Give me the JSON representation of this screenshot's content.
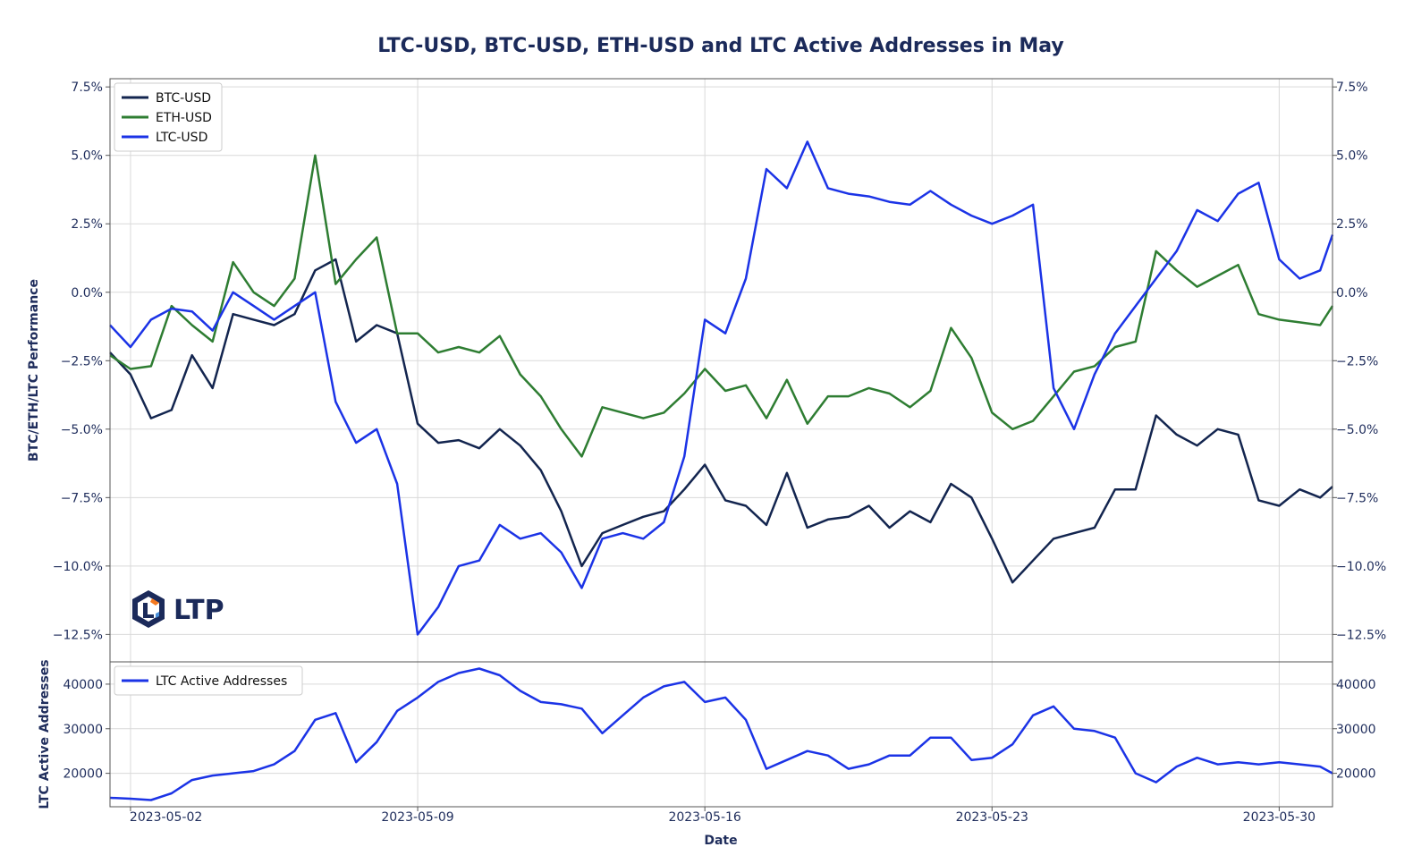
{
  "chart_data": [
    {
      "type": "line",
      "title": "LTC-USD, BTC-USD, ETH-USD and LTC Active Addresses in May",
      "ylabel": "BTC/ETH/LTC Performance",
      "xlabel": "",
      "ylim": [
        -13.5,
        7.8
      ],
      "yticks": [
        "7.5%",
        "5.0%",
        "2.5%",
        "0.0%",
        "−2.5%",
        "−5.0%",
        "−7.5%",
        "−10.0%",
        "−12.5%"
      ],
      "ytick_values": [
        7.5,
        5.0,
        2.5,
        0.0,
        -2.5,
        -5.0,
        -7.5,
        -10.0,
        -12.5
      ],
      "legend_position": "top-left",
      "grid": true,
      "x": [
        1.5,
        2,
        2.5,
        3,
        3.5,
        4,
        4.5,
        5,
        5.5,
        6,
        6.5,
        7,
        7.5,
        8,
        8.5,
        9,
        9.5,
        10,
        10.5,
        11,
        11.5,
        12,
        12.5,
        13,
        13.5,
        14,
        14.5,
        15,
        15.5,
        16,
        16.5,
        17,
        17.5,
        18,
        18.5,
        19,
        19.5,
        20,
        20.5,
        21,
        21.5,
        22,
        22.5,
        23,
        23.5,
        24,
        24.5,
        25,
        25.5,
        26,
        26.5,
        27,
        27.5,
        28,
        28.5,
        29,
        29.5,
        30,
        30.5,
        31,
        31.3
      ],
      "series": [
        {
          "name": "BTC-USD",
          "color": "#13254f",
          "values": [
            -2.2,
            -3.0,
            -4.6,
            -4.3,
            -2.3,
            -3.5,
            -0.8,
            -1.0,
            -1.2,
            -0.8,
            0.8,
            1.2,
            -1.8,
            -1.2,
            -1.5,
            -4.8,
            -5.5,
            -5.4,
            -5.7,
            -5.0,
            -5.6,
            -6.5,
            -8.0,
            -10.0,
            -8.8,
            -8.5,
            -8.2,
            -8.0,
            -7.2,
            -6.3,
            -7.6,
            -7.8,
            -8.5,
            -6.6,
            -8.6,
            -8.3,
            -8.2,
            -7.8,
            -8.6,
            -8.0,
            -8.4,
            -7.0,
            -7.5,
            -9.0,
            -10.6,
            -9.8,
            -9.0,
            -8.8,
            -8.6,
            -7.2,
            -7.2,
            -4.5,
            -5.2,
            -5.6,
            -5.0,
            -5.2,
            -7.6,
            -7.8,
            -7.2,
            -7.5,
            -7.1
          ]
        },
        {
          "name": "ETH-USD",
          "color": "#2e7d32",
          "values": [
            -2.3,
            -2.8,
            -2.7,
            -0.5,
            -1.2,
            -1.8,
            1.1,
            0.0,
            -0.5,
            0.5,
            5.0,
            0.3,
            1.2,
            2.0,
            -1.5,
            -1.5,
            -2.2,
            -2.0,
            -2.2,
            -1.6,
            -3.0,
            -3.8,
            -5.0,
            -6.0,
            -4.2,
            -4.4,
            -4.6,
            -4.4,
            -3.7,
            -2.8,
            -3.6,
            -3.4,
            -4.6,
            -3.2,
            -4.8,
            -3.8,
            -3.8,
            -3.5,
            -3.7,
            -4.2,
            -3.6,
            -1.3,
            -2.4,
            -4.4,
            -5.0,
            -4.7,
            -3.8,
            -2.9,
            -2.7,
            -2.0,
            -1.8,
            1.5,
            0.8,
            0.2,
            0.6,
            1.0,
            -0.8,
            -1.0,
            -1.1,
            -1.2,
            -0.5
          ]
        },
        {
          "name": "LTC-USD",
          "color": "#1b33e6",
          "values": [
            -1.2,
            -2.0,
            -1.0,
            -0.6,
            -0.7,
            -1.4,
            0.0,
            -0.5,
            -1.0,
            -0.5,
            0.0,
            -4.0,
            -5.5,
            -5.0,
            -7.0,
            -12.5,
            -11.5,
            -10.0,
            -9.8,
            -8.5,
            -9.0,
            -8.8,
            -9.5,
            -10.8,
            -9.0,
            -8.8,
            -9.0,
            -8.4,
            -6.0,
            -1.0,
            -1.5,
            0.5,
            4.5,
            3.8,
            5.5,
            3.8,
            3.6,
            3.5,
            3.3,
            3.2,
            3.7,
            3.2,
            2.8,
            2.5,
            2.8,
            3.2,
            -3.5,
            -5.0,
            -3.0,
            -1.5,
            -0.5,
            0.5,
            1.5,
            3.0,
            2.6,
            3.6,
            4.0,
            1.2,
            0.5,
            0.8,
            2.1
          ]
        }
      ]
    },
    {
      "type": "line",
      "ylabel": "LTC Active Addresses",
      "xlabel": "Date",
      "ylim": [
        12500,
        45000
      ],
      "yticks": [
        "40000",
        "30000",
        "20000"
      ],
      "ytick_values": [
        40000,
        30000,
        20000
      ],
      "xticks": [
        "2023-05-02",
        "2023-05-09",
        "2023-05-16",
        "2023-05-23",
        "2023-05-30"
      ],
      "xtick_values": [
        2,
        9,
        16,
        23,
        30
      ],
      "legend_position": "top-left",
      "grid": true,
      "x": [
        1.5,
        2,
        2.5,
        3,
        3.5,
        4,
        4.5,
        5,
        5.5,
        6,
        6.5,
        7,
        7.5,
        8,
        8.5,
        9,
        9.5,
        10,
        10.5,
        11,
        11.5,
        12,
        12.5,
        13,
        13.5,
        14,
        14.5,
        15,
        15.5,
        16,
        16.5,
        17,
        17.5,
        18,
        18.5,
        19,
        19.5,
        20,
        20.5,
        21,
        21.5,
        22,
        22.5,
        23,
        23.5,
        24,
        24.5,
        25,
        25.5,
        26,
        26.5,
        27,
        27.5,
        28,
        28.5,
        29,
        29.5,
        30,
        30.5,
        31,
        31.3
      ],
      "series": [
        {
          "name": "LTC Active Addresses",
          "color": "#1b33e6",
          "values": [
            14500,
            14300,
            14000,
            15500,
            18500,
            19500,
            20000,
            20500,
            22000,
            25000,
            32000,
            33500,
            22500,
            27000,
            34000,
            37000,
            40500,
            42500,
            43500,
            42000,
            38500,
            36000,
            35500,
            34500,
            29000,
            33000,
            37000,
            39500,
            40500,
            36000,
            37000,
            32000,
            21000,
            23000,
            25000,
            24000,
            21000,
            22000,
            24000,
            24000,
            28000,
            28000,
            23000,
            23500,
            26500,
            33000,
            35000,
            30000,
            29500,
            28000,
            20000,
            18000,
            21500,
            23500,
            22000,
            22500,
            22000,
            22500,
            22000,
            21500,
            20000
          ]
        }
      ]
    }
  ],
  "logo_text": "LTP"
}
